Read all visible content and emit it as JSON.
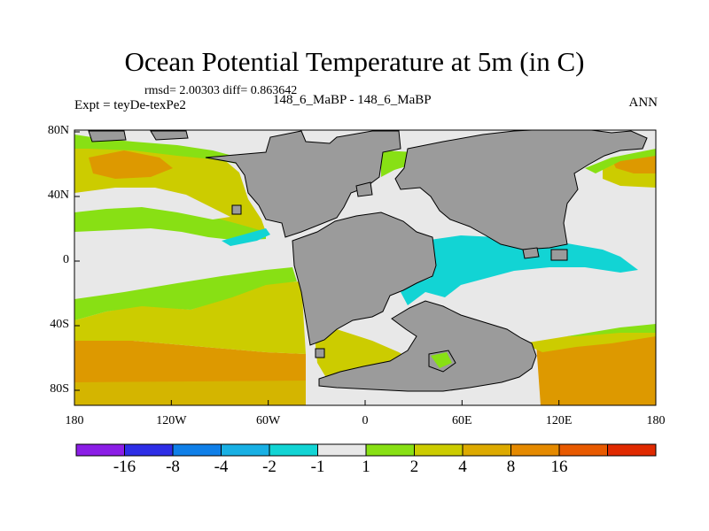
{
  "title": "Ocean Potential Temperature at 5m (in C)",
  "stats": "rmsd= 2.00303 diff= 0.863642",
  "expt": "Expt = teyDe-texPe2",
  "comparison": "148_6_MaBP - 148_6_MaBP",
  "season": "ANN",
  "y_axis": {
    "ticks": [
      "80N",
      "40N",
      "0",
      "40S",
      "80S"
    ],
    "values": [
      80,
      40,
      0,
      -40,
      -80
    ]
  },
  "x_axis": {
    "ticks": [
      "180",
      "120W",
      "60W",
      "0",
      "60E",
      "120E",
      "180"
    ],
    "values": [
      -180,
      -120,
      -60,
      0,
      60,
      120,
      180
    ]
  },
  "colorbar": {
    "colors": [
      "#8b1ee6",
      "#2e2ee6",
      "#0f7fe8",
      "#18b0e4",
      "#12d4d4",
      "#e8e8e8",
      "#88e014",
      "#cccc00",
      "#ddaa00",
      "#e58a00",
      "#e85a00",
      "#e02a00"
    ],
    "labels": [
      "-16",
      "-8",
      "-4",
      "-2",
      "-1",
      "1",
      "2",
      "4",
      "8",
      "16"
    ]
  },
  "palette": {
    "land": "#9b9b9b",
    "neutral": "#e8e8e8",
    "green": "#88e014",
    "yellow": "#cccc00",
    "orange": "#dd9900",
    "cyan": "#12d4d4"
  }
}
